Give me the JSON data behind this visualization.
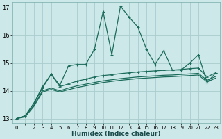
{
  "xlabel": "Humidex (Indice chaleur)",
  "bg_color": "#cce8e8",
  "grid_color": "#aacccc",
  "line_color": "#1a6b5a",
  "xlim": [
    -0.5,
    23.5
  ],
  "ylim": [
    12.85,
    17.2
  ],
  "yticks": [
    13,
    14,
    15,
    16,
    17
  ],
  "xticks": [
    0,
    1,
    2,
    3,
    4,
    5,
    6,
    7,
    8,
    9,
    10,
    11,
    12,
    13,
    14,
    15,
    16,
    17,
    18,
    19,
    20,
    21,
    22,
    23
  ],
  "s1_x": [
    0,
    1,
    2,
    3,
    4,
    5,
    6,
    7,
    8,
    9,
    10,
    11,
    12,
    13,
    14,
    15,
    16,
    17,
    18,
    19,
    20,
    21,
    22,
    23
  ],
  "s1_y": [
    13.0,
    13.1,
    13.55,
    14.15,
    14.6,
    14.2,
    14.9,
    14.95,
    14.95,
    15.5,
    16.85,
    15.3,
    17.05,
    16.65,
    16.3,
    15.5,
    14.95,
    15.45,
    14.75,
    14.75,
    15.0,
    15.3,
    14.3,
    14.65
  ],
  "s2_x": [
    0,
    1,
    2,
    3,
    4,
    5,
    6,
    7,
    8,
    9,
    10,
    11,
    12,
    13,
    14,
    15,
    16,
    17,
    18,
    19,
    20,
    21,
    22,
    23
  ],
  "s2_y": [
    13.0,
    13.1,
    13.55,
    14.1,
    14.6,
    14.15,
    14.25,
    14.35,
    14.42,
    14.5,
    14.55,
    14.58,
    14.62,
    14.65,
    14.68,
    14.7,
    14.72,
    14.74,
    14.75,
    14.77,
    14.8,
    14.82,
    14.5,
    14.65
  ],
  "s3_x": [
    0,
    1,
    2,
    3,
    4,
    5,
    6,
    7,
    8,
    9,
    10,
    11,
    12,
    13,
    14,
    15,
    16,
    17,
    18,
    19,
    20,
    21,
    22,
    23
  ],
  "s3_y": [
    13.0,
    13.08,
    13.48,
    14.0,
    14.1,
    14.0,
    14.1,
    14.18,
    14.24,
    14.3,
    14.36,
    14.4,
    14.44,
    14.47,
    14.5,
    14.52,
    14.54,
    14.56,
    14.57,
    14.59,
    14.61,
    14.63,
    14.38,
    14.52
  ],
  "s4_x": [
    0,
    1,
    2,
    3,
    4,
    5,
    6,
    7,
    8,
    9,
    10,
    11,
    12,
    13,
    14,
    15,
    16,
    17,
    18,
    19,
    20,
    21,
    22,
    23
  ],
  "s4_y": [
    13.0,
    13.06,
    13.44,
    13.96,
    14.05,
    13.96,
    14.04,
    14.12,
    14.18,
    14.24,
    14.3,
    14.34,
    14.38,
    14.41,
    14.44,
    14.46,
    14.48,
    14.5,
    14.51,
    14.53,
    14.55,
    14.57,
    14.32,
    14.46
  ]
}
